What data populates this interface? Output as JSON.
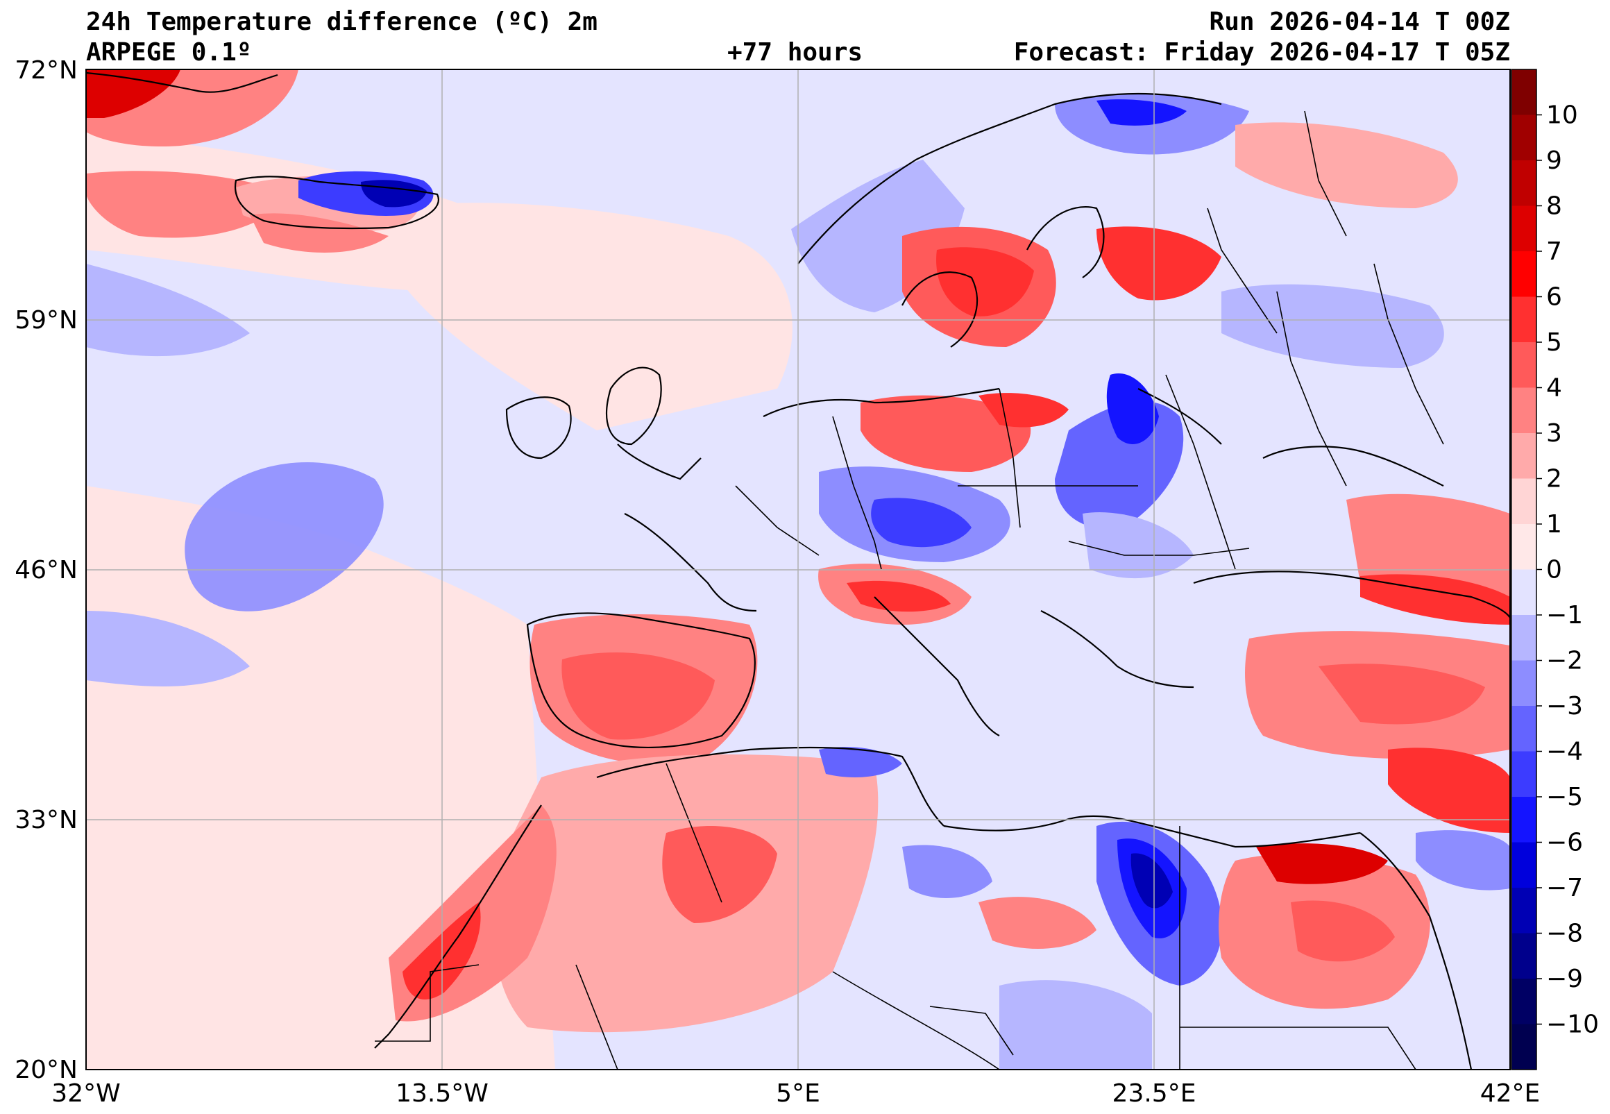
{
  "header": {
    "title": "24h Temperature difference (ºC) 2m",
    "model": "ARPEGE 0.1º",
    "lead": "+77 hours",
    "run": "Run 2026-04-14 T 00Z",
    "forecast": "Forecast: Friday 2026-04-17 T 05Z"
  },
  "axes": {
    "lat_labels": [
      "72°N",
      "59°N",
      "46°N",
      "33°N",
      "20°N"
    ],
    "lon_labels": [
      "32°W",
      "13.5°W",
      "5°E",
      "23.5°E",
      "42°E"
    ]
  },
  "colorbar": {
    "ticks": [
      "10",
      "9",
      "8",
      "7",
      "6",
      "5",
      "4",
      "3",
      "2",
      "1",
      "0",
      "−1",
      "−2",
      "−3",
      "−4",
      "−5",
      "−6",
      "−7",
      "−8",
      "−9",
      "−10"
    ],
    "colors": [
      "#7f0000",
      "#a00000",
      "#c00000",
      "#dd0000",
      "#ff0000",
      "#ff3030",
      "#ff5a5a",
      "#ff8282",
      "#ffaaaa",
      "#ffd5d5",
      "#ffe8e8",
      "#e3e3ff",
      "#b6b6ff",
      "#8d8dff",
      "#6464ff",
      "#3c3cff",
      "#1414ff",
      "#0000dc",
      "#0000b4",
      "#00008c",
      "#000064",
      "#000050"
    ]
  },
  "colors": {
    "neutral_pos": "#ffe4e4",
    "neutral_neg": "#e4e4ff",
    "warm": "#ff6a6a",
    "cold": "#4b4bff"
  }
}
